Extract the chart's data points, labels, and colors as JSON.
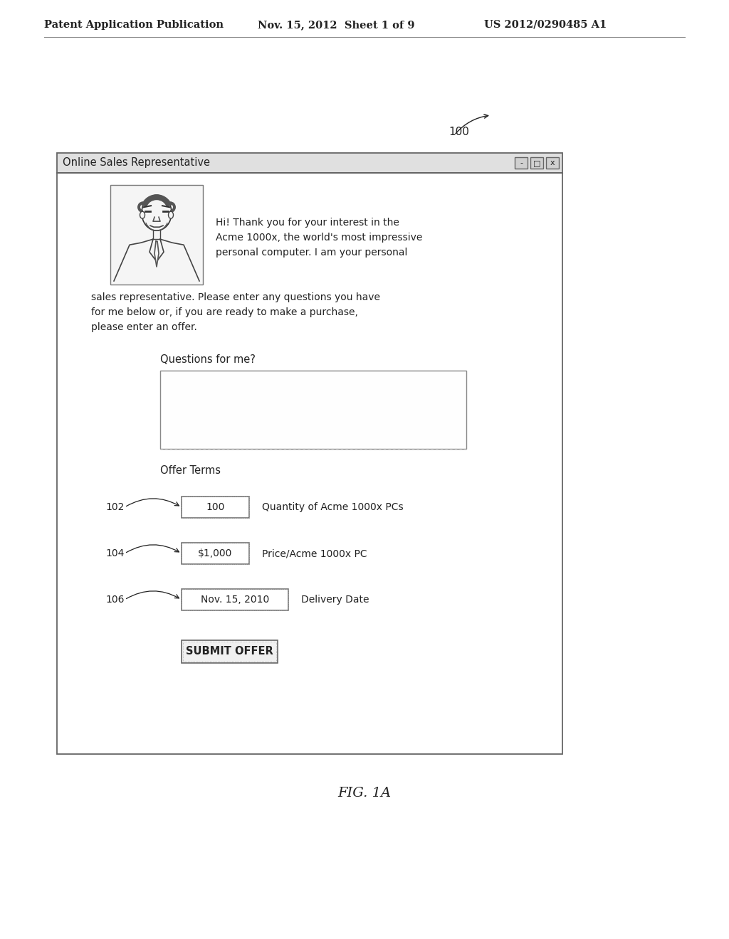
{
  "bg_color": "#ffffff",
  "header_text_left": "Patent Application Publication",
  "header_text_mid": "Nov. 15, 2012  Sheet 1 of 9",
  "header_text_right": "US 2012/0290485 A1",
  "figure_label": "FIG. 1A",
  "ref_100": "100",
  "window_title": "Online Sales Representative",
  "greeting_line1": "Hi! Thank you for your interest in the",
  "greeting_line2": "Acme 1000x, the world's most impressive",
  "greeting_line3": "personal computer. I am your personal",
  "greeting_line4": "sales representative. Please enter any questions you have",
  "greeting_line5": "for me below or, if you are ready to make a purchase,",
  "greeting_line6": "please enter an offer.",
  "questions_label": "Questions for me?",
  "offer_terms_label": "Offer Terms",
  "field1_ref": "102",
  "field1_value": "100",
  "field1_label": "Quantity of Acme 1000x PCs",
  "field2_ref": "104",
  "field2_value": "$1,000",
  "field2_label": "Price/Acme 1000x PC",
  "field3_ref": "106",
  "field3_value": "Nov. 15, 2010",
  "field3_label": "Delivery Date",
  "submit_button": "SUBMIT OFFER",
  "text_color": "#222222",
  "border_color": "#666666",
  "light_border": "#999999",
  "titlebar_bg": "#e0e0e0",
  "window_bg": "#ffffff",
  "body_bg": "#f8f8f8"
}
